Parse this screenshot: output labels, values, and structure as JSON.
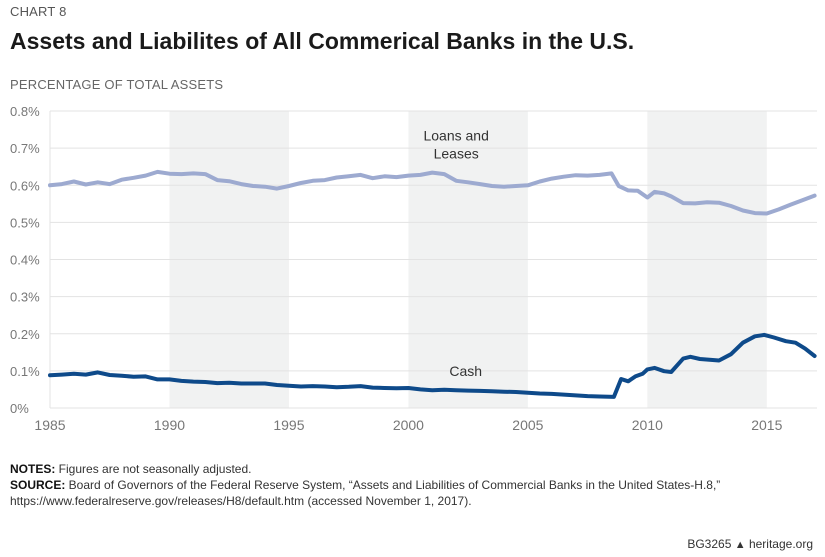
{
  "header": {
    "chart_number": "CHART 8",
    "title": "Assets and Liabilites of All Commerical Banks in the U.S.",
    "units_label": "PERCENTAGE OF TOTAL ASSETS"
  },
  "chart_data": {
    "type": "line",
    "title": "Assets and Liabilites of All Commerical Banks in the U.S.",
    "ylabel": "PERCENTAGE OF TOTAL ASSETS",
    "xlabel": "",
    "xlim": [
      1985,
      2017.1
    ],
    "ylim": [
      0,
      0.8
    ],
    "grid": true,
    "x_ticks": [
      1985,
      1990,
      1995,
      2000,
      2005,
      2010,
      2015
    ],
    "x_tick_labels": [
      "1985",
      "1990",
      "1995",
      "2000",
      "2005",
      "2010",
      "2015"
    ],
    "y_ticks": [
      0,
      0.1,
      0.2,
      0.3,
      0.4,
      0.5,
      0.6,
      0.7,
      0.8
    ],
    "y_tick_labels": [
      "0%",
      "0.1%",
      "0.2%",
      "0.3%",
      "0.4%",
      "0.5%",
      "0.6%",
      "0.7%",
      "0.8%"
    ],
    "shaded_bands": [
      [
        1990,
        1995
      ],
      [
        2000,
        2005
      ],
      [
        2010,
        2015
      ]
    ],
    "series": [
      {
        "name": "Loans and Leases",
        "label": [
          "Loans and",
          "Leases"
        ],
        "label_anchor": [
          2002,
          0.72
        ],
        "color": "#9daad0",
        "points": [
          [
            1985,
            0.6
          ],
          [
            1985.5,
            0.603
          ],
          [
            1986,
            0.61
          ],
          [
            1986.5,
            0.602
          ],
          [
            1987,
            0.608
          ],
          [
            1987.5,
            0.603
          ],
          [
            1988,
            0.615
          ],
          [
            1988.5,
            0.62
          ],
          [
            1989,
            0.626
          ],
          [
            1989.5,
            0.636
          ],
          [
            1990,
            0.631
          ],
          [
            1990.5,
            0.63
          ],
          [
            1991,
            0.632
          ],
          [
            1991.5,
            0.63
          ],
          [
            1992,
            0.614
          ],
          [
            1992.5,
            0.611
          ],
          [
            1993,
            0.603
          ],
          [
            1993.5,
            0.598
          ],
          [
            1994,
            0.596
          ],
          [
            1994.5,
            0.591
          ],
          [
            1995,
            0.598
          ],
          [
            1995.5,
            0.606
          ],
          [
            1996,
            0.612
          ],
          [
            1996.5,
            0.614
          ],
          [
            1997,
            0.621
          ],
          [
            1997.5,
            0.624
          ],
          [
            1998,
            0.628
          ],
          [
            1998.5,
            0.619
          ],
          [
            1999,
            0.624
          ],
          [
            1999.5,
            0.622
          ],
          [
            2000,
            0.626
          ],
          [
            2000.5,
            0.628
          ],
          [
            2001,
            0.634
          ],
          [
            2001.5,
            0.63
          ],
          [
            2002,
            0.612
          ],
          [
            2002.5,
            0.608
          ],
          [
            2003,
            0.603
          ],
          [
            2003.5,
            0.598
          ],
          [
            2004,
            0.596
          ],
          [
            2004.5,
            0.598
          ],
          [
            2005,
            0.6
          ],
          [
            2005.5,
            0.61
          ],
          [
            2006,
            0.618
          ],
          [
            2006.5,
            0.623
          ],
          [
            2007,
            0.627
          ],
          [
            2007.5,
            0.626
          ],
          [
            2008,
            0.628
          ],
          [
            2008.5,
            0.632
          ],
          [
            2008.8,
            0.598
          ],
          [
            2009.2,
            0.586
          ],
          [
            2009.6,
            0.585
          ],
          [
            2010,
            0.567
          ],
          [
            2010.3,
            0.582
          ],
          [
            2010.7,
            0.578
          ],
          [
            2011,
            0.57
          ],
          [
            2011.5,
            0.552
          ],
          [
            2012,
            0.551
          ],
          [
            2012.5,
            0.554
          ],
          [
            2013,
            0.553
          ],
          [
            2013.5,
            0.544
          ],
          [
            2014,
            0.532
          ],
          [
            2014.5,
            0.525
          ],
          [
            2015,
            0.524
          ],
          [
            2015.5,
            0.535
          ],
          [
            2016,
            0.548
          ],
          [
            2016.5,
            0.56
          ],
          [
            2017,
            0.572
          ]
        ]
      },
      {
        "name": "Cash",
        "label": [
          "Cash"
        ],
        "label_anchor": [
          2002.4,
          0.086
        ],
        "color": "#0e4a8a",
        "points": [
          [
            1985,
            0.088
          ],
          [
            1985.5,
            0.09
          ],
          [
            1986,
            0.092
          ],
          [
            1986.5,
            0.09
          ],
          [
            1987,
            0.096
          ],
          [
            1987.5,
            0.089
          ],
          [
            1988,
            0.087
          ],
          [
            1988.5,
            0.084
          ],
          [
            1989,
            0.085
          ],
          [
            1989.5,
            0.077
          ],
          [
            1990,
            0.077
          ],
          [
            1990.5,
            0.073
          ],
          [
            1991,
            0.071
          ],
          [
            1991.5,
            0.07
          ],
          [
            1992,
            0.067
          ],
          [
            1992.5,
            0.068
          ],
          [
            1993,
            0.066
          ],
          [
            1993.5,
            0.066
          ],
          [
            1994,
            0.066
          ],
          [
            1994.5,
            0.062
          ],
          [
            1995,
            0.06
          ],
          [
            1995.5,
            0.058
          ],
          [
            1996,
            0.059
          ],
          [
            1996.5,
            0.058
          ],
          [
            1997,
            0.056
          ],
          [
            1997.5,
            0.057
          ],
          [
            1998,
            0.059
          ],
          [
            1998.5,
            0.055
          ],
          [
            1999,
            0.054
          ],
          [
            1999.5,
            0.053
          ],
          [
            2000,
            0.054
          ],
          [
            2000.5,
            0.05
          ],
          [
            2001,
            0.048
          ],
          [
            2001.5,
            0.049
          ],
          [
            2002,
            0.048
          ],
          [
            2002.5,
            0.047
          ],
          [
            2003,
            0.046
          ],
          [
            2003.5,
            0.045
          ],
          [
            2004,
            0.044
          ],
          [
            2004.5,
            0.043
          ],
          [
            2005,
            0.041
          ],
          [
            2005.5,
            0.039
          ],
          [
            2006,
            0.038
          ],
          [
            2006.5,
            0.036
          ],
          [
            2007,
            0.034
          ],
          [
            2007.5,
            0.032
          ],
          [
            2008,
            0.031
          ],
          [
            2008.6,
            0.03
          ],
          [
            2008.9,
            0.078
          ],
          [
            2009.2,
            0.072
          ],
          [
            2009.5,
            0.085
          ],
          [
            2009.8,
            0.092
          ],
          [
            2010,
            0.104
          ],
          [
            2010.3,
            0.108
          ],
          [
            2010.7,
            0.099
          ],
          [
            2011,
            0.097
          ],
          [
            2011.5,
            0.133
          ],
          [
            2011.8,
            0.138
          ],
          [
            2012.2,
            0.132
          ],
          [
            2012.6,
            0.13
          ],
          [
            2013,
            0.128
          ],
          [
            2013.5,
            0.145
          ],
          [
            2014,
            0.176
          ],
          [
            2014.5,
            0.193
          ],
          [
            2014.9,
            0.197
          ],
          [
            2015.3,
            0.19
          ],
          [
            2015.8,
            0.18
          ],
          [
            2016.2,
            0.176
          ],
          [
            2016.6,
            0.16
          ],
          [
            2017,
            0.14
          ]
        ]
      }
    ]
  },
  "notes": {
    "notes_label": "NOTES:",
    "notes_text": " Figures are not seasonally adjusted.",
    "source_label": "SOURCE:",
    "source_text": " Board of Governors of the Federal Reserve System, “Assets and Liabilities of Commercial Banks in the United States-H.8,” https://www.federalreserve.gov/releases/H8/default.htm (accessed November 1, 2017)."
  },
  "footer": {
    "report_id": "BG3265",
    "logo_icon": "liberty-bell-icon",
    "site": "heritage.org"
  }
}
